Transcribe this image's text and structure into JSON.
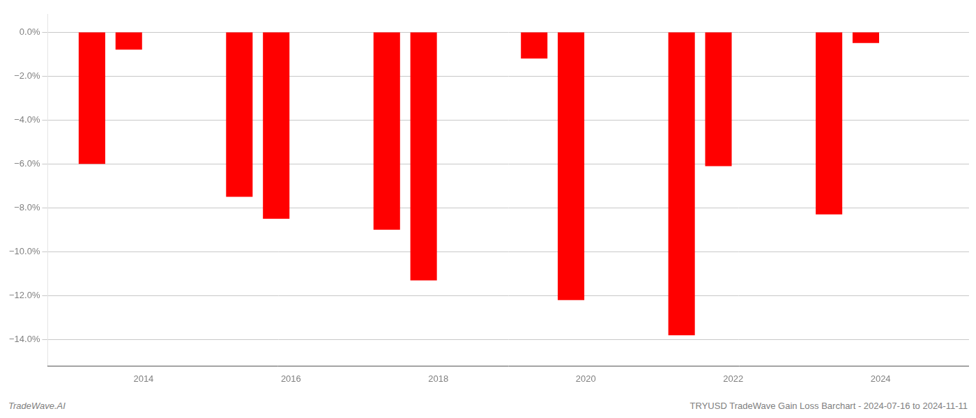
{
  "chart_data": {
    "type": "bar",
    "x": [
      2013.3,
      2013.8,
      2015.3,
      2015.8,
      2017.3,
      2017.8,
      2019.3,
      2019.8,
      2021.3,
      2021.8,
      2023.3,
      2023.8
    ],
    "values": [
      -6.0,
      -0.8,
      -7.5,
      -8.5,
      -9.0,
      -11.3,
      -1.2,
      -12.2,
      -13.8,
      -6.1,
      -8.3,
      -0.5
    ],
    "color": "#ff0000",
    "xlim": [
      2012.7,
      2025.2
    ],
    "xticks": [
      2014,
      2016,
      2018,
      2020,
      2022,
      2024
    ],
    "ylim": [
      -15.2,
      0.8
    ],
    "yticks": [
      {
        "value": 0.0,
        "label": "0.0%"
      },
      {
        "value": -2.0,
        "label": "−2.0%"
      },
      {
        "value": -4.0,
        "label": "−4.0%"
      },
      {
        "value": -6.0,
        "label": "−6.0%"
      },
      {
        "value": -8.0,
        "label": "−8.0%"
      },
      {
        "value": -10.0,
        "label": "−10.0%"
      },
      {
        "value": -12.0,
        "label": "−12.0%"
      },
      {
        "value": -14.0,
        "label": "−14.0%"
      }
    ],
    "grid": true,
    "annotations": [
      "TradeWave.AI",
      "TRYUSD TradeWave Gain Loss Barchart - 2024-07-16 to 2024-11-11"
    ]
  }
}
